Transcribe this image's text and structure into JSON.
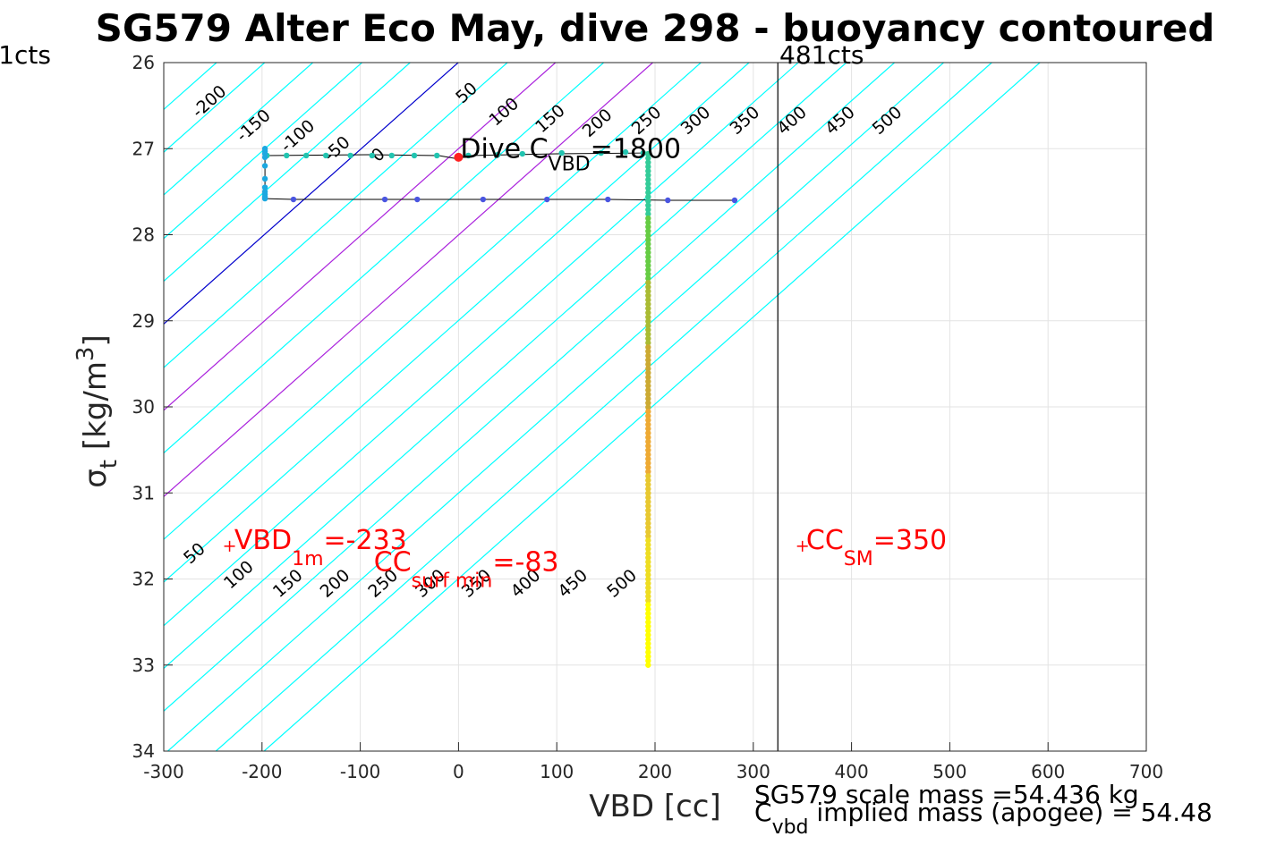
{
  "chart_data": {
    "type": "scatter",
    "title": "SG579 Alter Eco May, dive 298 - buoyancy contoured",
    "xlabel": "VBD [cc]",
    "ylabel": {
      "main": "σ",
      "sub": "t",
      "units_pre": " [kg/m",
      "units_sup": "3",
      "units_post": "]"
    },
    "xlim": [
      -300,
      700
    ],
    "ylim": [
      26,
      34
    ],
    "y_reversed": true,
    "grid": true,
    "xticks": [
      {
        "value": -300,
        "label": "-300"
      },
      {
        "value": -200,
        "label": "-200"
      },
      {
        "value": -100,
        "label": "-100"
      },
      {
        "value": 0,
        "label": "0"
      },
      {
        "value": 100,
        "label": "100"
      },
      {
        "value": 200,
        "label": "200"
      },
      {
        "value": 300,
        "label": "300"
      },
      {
        "value": 400,
        "label": "400"
      },
      {
        "value": 500,
        "label": "500"
      },
      {
        "value": 600,
        "label": "600"
      },
      {
        "value": 700,
        "label": "700"
      }
    ],
    "yticks": [
      {
        "value": 26,
        "label": "26"
      },
      {
        "value": 27,
        "label": "27"
      },
      {
        "value": 28,
        "label": "28"
      },
      {
        "value": 29,
        "label": "29"
      },
      {
        "value": 30,
        "label": "30"
      },
      {
        "value": 31,
        "label": "31"
      },
      {
        "value": 32,
        "label": "32"
      },
      {
        "value": 33,
        "label": "33"
      },
      {
        "value": 34,
        "label": "34"
      }
    ],
    "contours": {
      "slope_cc_per_sigma": -98.7,
      "intercept_ref_sigma": 27,
      "lines": [
        {
          "x_at_ref": -345,
          "color": "#00ffff",
          "label": "-200"
        },
        {
          "x_at_ref": -296,
          "color": "#00ffff",
          "label": "-150"
        },
        {
          "x_at_ref": -247,
          "color": "#00ffff",
          "label": "-100"
        },
        {
          "x_at_ref": -197,
          "color": "#00ffff",
          "label": "-50"
        },
        {
          "x_at_ref": -148,
          "color": "#00ffff",
          "label": "0"
        },
        {
          "x_at_ref": -99,
          "color": "#0000cc",
          "label": "50"
        },
        {
          "x_at_ref": -49,
          "color": "#00ffff",
          "label": ""
        },
        {
          "x_at_ref": 0,
          "color": "#aa22dd",
          "label": "100"
        },
        {
          "x_at_ref": 49,
          "color": "#00ffff",
          "label": "150"
        },
        {
          "x_at_ref": 99,
          "color": "#aa22dd",
          "label": "200"
        },
        {
          "x_at_ref": 148,
          "color": "#00ffff",
          "label": "250"
        },
        {
          "x_at_ref": 197,
          "color": "#00ffff",
          "label": "300"
        },
        {
          "x_at_ref": 247,
          "color": "#00ffff",
          "label": "350"
        },
        {
          "x_at_ref": 296,
          "color": "#00ffff",
          "label": "400"
        },
        {
          "x_at_ref": 345,
          "color": "#00ffff",
          "label": "450"
        },
        {
          "x_at_ref": 395,
          "color": "#00ffff",
          "label": "500"
        },
        {
          "x_at_ref": 444,
          "color": "#00ffff",
          "label": ""
        },
        {
          "x_at_ref": 493,
          "color": "#00ffff",
          "label": ""
        }
      ],
      "upper_labels": [
        {
          "x": -250,
          "y": 26.5,
          "text": "-200"
        },
        {
          "x": -205,
          "y": 26.78,
          "text": "-150"
        },
        {
          "x": -160,
          "y": 26.9,
          "text": "-100"
        },
        {
          "x": -120,
          "y": 27.05,
          "text": "-50"
        },
        {
          "x": -78,
          "y": 27.12,
          "text": "0"
        },
        {
          "x": 12,
          "y": 26.4,
          "text": "50"
        },
        {
          "x": 50,
          "y": 26.62,
          "text": "100"
        },
        {
          "x": 97,
          "y": 26.7,
          "text": "150"
        },
        {
          "x": 145,
          "y": 26.75,
          "text": "200"
        },
        {
          "x": 195,
          "y": 26.72,
          "text": "250"
        },
        {
          "x": 245,
          "y": 26.72,
          "text": "300"
        },
        {
          "x": 295,
          "y": 26.72,
          "text": "350"
        },
        {
          "x": 343,
          "y": 26.72,
          "text": "400"
        },
        {
          "x": 392,
          "y": 26.72,
          "text": "450"
        },
        {
          "x": 440,
          "y": 26.72,
          "text": "500"
        }
      ],
      "lower_labels": [
        {
          "x": -265,
          "y": 31.75,
          "text": "50"
        },
        {
          "x": -220,
          "y": 32.0,
          "text": "100"
        },
        {
          "x": -170,
          "y": 32.1,
          "text": "150"
        },
        {
          "x": -122,
          "y": 32.1,
          "text": "200"
        },
        {
          "x": -73,
          "y": 32.1,
          "text": "250"
        },
        {
          "x": -25,
          "y": 32.1,
          "text": "300"
        },
        {
          "x": 22,
          "y": 32.1,
          "text": "350"
        },
        {
          "x": 72,
          "y": 32.1,
          "text": "400"
        },
        {
          "x": 120,
          "y": 32.1,
          "text": "450"
        },
        {
          "x": 170,
          "y": 32.1,
          "text": "500"
        }
      ]
    },
    "vertical_marker": {
      "x": 325,
      "label": "481cts"
    },
    "left_marker_label": "1cts",
    "trace": {
      "color": "#000000",
      "points": [
        [
          -197,
          27.0
        ],
        [
          -197,
          27.58
        ],
        [
          150,
          27.59
        ],
        [
          282,
          27.6
        ],
        [
          282,
          27.6
        ],
        [
          -197,
          27.58
        ]
      ],
      "top_path": [
        [
          -197,
          27.08
        ],
        [
          -90,
          27.07
        ],
        [
          -20,
          27.08
        ],
        [
          0,
          27.12
        ],
        [
          10,
          27.08
        ],
        [
          100,
          27.06
        ],
        [
          193,
          27.05
        ]
      ]
    },
    "series": [
      {
        "name": "",
        "segment": "top",
        "color": "#22c4b0",
        "points": [
          [
            -195,
            27.08
          ],
          [
            -175,
            27.08
          ],
          [
            -155,
            27.08
          ],
          [
            -135,
            27.08
          ],
          [
            -110,
            27.08
          ],
          [
            -88,
            27.08
          ],
          [
            -68,
            27.08
          ],
          [
            -45,
            27.08
          ],
          [
            -22,
            27.08
          ],
          [
            10,
            27.08
          ],
          [
            40,
            27.07
          ],
          [
            65,
            27.06
          ],
          [
            105,
            27.05
          ],
          [
            145,
            27.05
          ],
          [
            170,
            27.04
          ],
          [
            188,
            27.05
          ],
          [
            193,
            27.06
          ]
        ]
      },
      {
        "name": "",
        "segment": "left",
        "color": "#1ca8e0",
        "points": [
          [
            -197,
            27.0
          ],
          [
            -197,
            27.03
          ],
          [
            -197,
            27.06
          ],
          [
            -197,
            27.1
          ],
          [
            -197,
            27.2
          ],
          [
            -197,
            27.35
          ],
          [
            -197,
            27.45
          ],
          [
            -197,
            27.5
          ],
          [
            -197,
            27.53
          ],
          [
            -197,
            27.56
          ],
          [
            -197,
            27.58
          ]
        ]
      },
      {
        "name": "",
        "segment": "bottom",
        "color": "#4a55e0",
        "points": [
          [
            -168,
            27.59
          ],
          [
            -75,
            27.59
          ],
          [
            -42,
            27.59
          ],
          [
            25,
            27.59
          ],
          [
            90,
            27.59
          ],
          [
            152,
            27.59
          ],
          [
            213,
            27.6
          ],
          [
            281,
            27.6
          ]
        ]
      },
      {
        "name": "",
        "segment": "vertical",
        "color_gradient": [
          "#33cc99",
          "#66cc44",
          "#aabb33",
          "#ccaa33",
          "#eeaa33",
          "#e8c830",
          "#eedd22",
          "#ffff00"
        ],
        "x": 193,
        "y_from": 27.06,
        "y_to": 33.0,
        "count": 120
      }
    ],
    "special_points": [
      {
        "x": 0,
        "y": 27.1,
        "color": "#ff2020",
        "marker": "star"
      },
      {
        "x": -233,
        "y": 31.62,
        "color": "#ff0000",
        "marker": "plus"
      },
      {
        "x": 350,
        "y": 31.62,
        "color": "#ff0000",
        "marker": "plus"
      }
    ],
    "annotations": {
      "dive_c": {
        "x": 0,
        "y": 27.0,
        "pre": "Dive C",
        "sub": "VBD",
        "post": "=1800",
        "color": "#000000"
      },
      "vbd_1m": {
        "x": -230,
        "y": 31.55,
        "pre": "VBD",
        "sub": "1m",
        "post": "=-233",
        "color": "#ff0000"
      },
      "cc_surf": {
        "x": -88,
        "y": 31.8,
        "pre": "CC",
        "sub": "surf min",
        "post": "=-83",
        "color": "#ff0000"
      },
      "cc_sm": {
        "x": 352,
        "y": 31.55,
        "pre": "CC",
        "sub": "SM",
        "post": "=350",
        "color": "#ff0000"
      }
    },
    "footer": {
      "scale_mass": "SG579 scale mass =54.436 kg",
      "implied_pre": "C",
      "implied_sub": "vbd",
      "implied_post": "  implied mass (apogee) = 54.48"
    }
  }
}
